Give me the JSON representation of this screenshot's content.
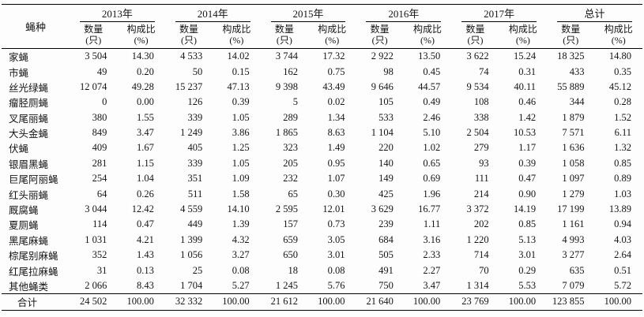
{
  "chart_data": {
    "type": "table",
    "row_label_header": "蝇种",
    "column_groups": [
      "2013年",
      "2014年",
      "2015年",
      "2016年",
      "2017年",
      "总计"
    ],
    "sub_columns": [
      "数量\n(只)",
      "构成比\n(%)"
    ],
    "rows": [
      {
        "species": "家蝇",
        "values": [
          "3 504",
          "14.30",
          "4 533",
          "14.02",
          "3 744",
          "17.32",
          "2 922",
          "13.50",
          "3 622",
          "15.24",
          "18 325",
          "14.80"
        ]
      },
      {
        "species": "市蝇",
        "values": [
          "49",
          "0.20",
          "50",
          "0.15",
          "162",
          "0.75",
          "98",
          "0.45",
          "74",
          "0.31",
          "433",
          "0.35"
        ]
      },
      {
        "species": "丝光绿蝇",
        "values": [
          "12 074",
          "49.28",
          "15 237",
          "47.13",
          "9 398",
          "43.49",
          "9 646",
          "44.57",
          "9 534",
          "40.11",
          "55 889",
          "45.12"
        ]
      },
      {
        "species": "瘤胫厕蝇",
        "values": [
          "0",
          "0.00",
          "126",
          "0.39",
          "5",
          "0.02",
          "105",
          "0.49",
          "108",
          "0.46",
          "344",
          "0.28"
        ]
      },
      {
        "species": "叉尾丽蝇",
        "values": [
          "380",
          "1.55",
          "339",
          "1.05",
          "289",
          "1.34",
          "533",
          "2.46",
          "338",
          "1.42",
          "1 879",
          "1.52"
        ]
      },
      {
        "species": "大头金蝇",
        "values": [
          "849",
          "3.47",
          "1 249",
          "3.86",
          "1 865",
          "8.63",
          "1 104",
          "5.10",
          "2 504",
          "10.53",
          "7 571",
          "6.11"
        ]
      },
      {
        "species": "伏蝇",
        "values": [
          "409",
          "1.67",
          "405",
          "1.25",
          "323",
          "1.49",
          "220",
          "1.02",
          "279",
          "1.17",
          "1 636",
          "1.32"
        ]
      },
      {
        "species": "银眉黑蝇",
        "values": [
          "281",
          "1.15",
          "339",
          "1.05",
          "205",
          "0.95",
          "140",
          "0.65",
          "93",
          "0.39",
          "1 058",
          "0.85"
        ]
      },
      {
        "species": "巨尾阿丽蝇",
        "values": [
          "254",
          "1.04",
          "351",
          "1.09",
          "232",
          "1.07",
          "149",
          "0.69",
          "111",
          "0.47",
          "1 097",
          "0.89"
        ]
      },
      {
        "species": "红头丽蝇",
        "values": [
          "64",
          "0.26",
          "511",
          "1.58",
          "65",
          "0.30",
          "425",
          "1.96",
          "214",
          "0.90",
          "1 279",
          "1.03"
        ]
      },
      {
        "species": "厩腐蝇",
        "values": [
          "3 044",
          "12.42",
          "4 559",
          "14.10",
          "2 595",
          "12.01",
          "3 629",
          "16.77",
          "3 372",
          "14.19",
          "17 199",
          "13.89"
        ]
      },
      {
        "species": "夏厕蝇",
        "values": [
          "114",
          "0.47",
          "449",
          "1.39",
          "157",
          "0.73",
          "239",
          "1.11",
          "202",
          "0.85",
          "1 161",
          "0.94"
        ]
      },
      {
        "species": "黑尾麻蝇",
        "values": [
          "1 031",
          "4.21",
          "1 399",
          "4.32",
          "659",
          "3.05",
          "684",
          "3.16",
          "1 220",
          "5.13",
          "4 993",
          "4.03"
        ]
      },
      {
        "species": "棕尾别麻蝇",
        "values": [
          "352",
          "1.43",
          "1 056",
          "3.27",
          "650",
          "3.01",
          "505",
          "2.33",
          "714",
          "3.01",
          "3 277",
          "2.64"
        ]
      },
      {
        "species": "红尾拉麻蝇",
        "values": [
          "31",
          "0.13",
          "25",
          "0.08",
          "18",
          "0.08",
          "491",
          "2.27",
          "70",
          "0.29",
          "635",
          "0.51"
        ]
      },
      {
        "species": "其他蝇类",
        "values": [
          "2 066",
          "8.43",
          "1 704",
          "5.27",
          "1 245",
          "5.76",
          "750",
          "3.47",
          "1 314",
          "5.53",
          "7 079",
          "5.72"
        ]
      }
    ],
    "total_row": {
      "species": "合计",
      "values": [
        "24 502",
        "100.00",
        "32 332",
        "100.00",
        "21 612",
        "100.00",
        "21 640",
        "100.00",
        "23 769",
        "100.00",
        "123 855",
        "100.00"
      ]
    }
  }
}
